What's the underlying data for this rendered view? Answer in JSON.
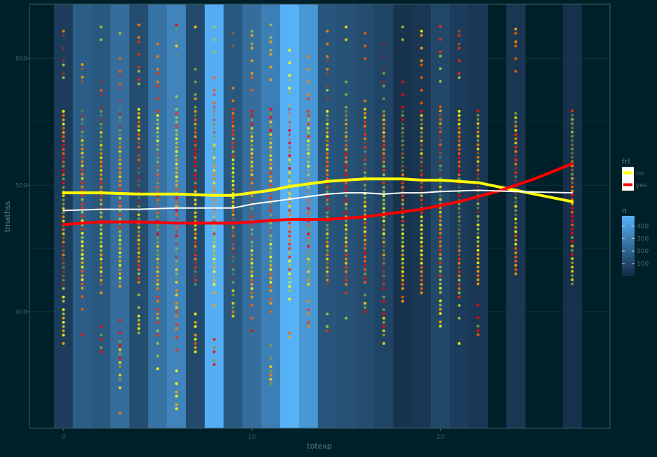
{
  "chart_data": {
    "type": "scatter",
    "title": "",
    "xlabel": "totexp",
    "ylabel": "tmathss",
    "xlim": [
      -1.8,
      29
    ],
    "ylim": [
      308,
      643
    ],
    "xticks": [
      0,
      10,
      20
    ],
    "yticks": [
      400,
      500,
      600
    ],
    "grid": true,
    "background_color": "#002029",
    "plot_border_color": "#3b5b63",
    "tile_counts": {
      "x": [
        0,
        1,
        2,
        3,
        4,
        5,
        6,
        7,
        8,
        9,
        10,
        11,
        12,
        13,
        14,
        15,
        16,
        17,
        18,
        19,
        20,
        21,
        22,
        23,
        24,
        25,
        26,
        27
      ],
      "n": [
        60,
        180,
        160,
        240,
        120,
        260,
        320,
        110,
        470,
        160,
        240,
        300,
        480,
        390,
        150,
        140,
        120,
        90,
        30,
        40,
        100,
        60,
        40,
        0,
        40,
        0,
        0,
        20
      ]
    },
    "fill_legend": {
      "title": "n",
      "ticks": [
        100,
        200,
        300,
        400
      ],
      "range": [
        0,
        480
      ],
      "low_color": "#132b43",
      "high_color": "#56b1f7"
    },
    "color_legend": {
      "title": "frl",
      "entries": [
        {
          "label": "no",
          "color": "#ffff00"
        },
        {
          "label": "yes",
          "color": "#ff0000"
        }
      ]
    },
    "point_palette": [
      "#ffff00",
      "#ffd700",
      "#ffa500",
      "#ff7f00",
      "#ff5a00",
      "#ff2a00",
      "#ff0000",
      "#a6c83c",
      "#7f9f3c"
    ],
    "points": {
      "x": [
        0,
        1,
        2,
        3,
        4,
        5,
        6,
        7,
        8,
        9,
        10,
        11,
        12,
        13,
        14,
        15,
        16,
        17,
        18,
        19,
        20,
        21,
        22,
        24,
        27
      ],
      "ymin": [
        365,
        382,
        365,
        320,
        380,
        355,
        320,
        365,
        355,
        390,
        385,
        340,
        380,
        385,
        385,
        395,
        400,
        365,
        405,
        415,
        382,
        375,
        382,
        430,
        422
      ],
      "ymax": [
        627,
        602,
        627,
        627,
        627,
        627,
        627,
        627,
        627,
        627,
        627,
        627,
        627,
        627,
        627,
        627,
        627,
        627,
        627,
        627,
        627,
        627,
        560,
        627,
        575
      ]
    },
    "smooth_lines": [
      {
        "color": "#ffff00",
        "x": [
          0,
          2,
          4,
          6,
          8,
          9,
          10,
          11,
          12,
          13,
          14,
          15,
          16,
          17,
          18,
          19,
          20,
          21,
          22,
          23,
          24,
          25,
          26,
          27
        ],
        "y": [
          494,
          494,
          493,
          493,
          492,
          492,
          494,
          496,
          499,
          501,
          503,
          504,
          505,
          505,
          505,
          504,
          504,
          503,
          502,
          499,
          496,
          493,
          490,
          487
        ]
      },
      {
        "color": "#ff0000",
        "x": [
          0,
          2,
          4,
          6,
          7,
          8,
          9,
          10,
          11,
          12,
          13,
          14,
          15,
          16,
          17,
          18,
          19,
          20,
          21,
          22,
          23,
          24,
          25,
          26,
          27
        ],
        "y": [
          469,
          471,
          471,
          470,
          470,
          470,
          470,
          471,
          472,
          473,
          473,
          473,
          474,
          475,
          477,
          479,
          481,
          484,
          487,
          491,
          495,
          500,
          505,
          511,
          517
        ]
      },
      {
        "color": "#ffffff",
        "x": [
          0,
          2,
          4,
          6,
          8,
          9,
          10,
          11,
          12,
          13,
          14,
          15,
          16,
          17,
          18,
          19,
          20,
          22,
          24,
          27
        ],
        "y": [
          480,
          481,
          481,
          482,
          482,
          482,
          485,
          487,
          489,
          491,
          493,
          494,
          494,
          493,
          494,
          494,
          495,
          496,
          495,
          494
        ]
      }
    ]
  }
}
